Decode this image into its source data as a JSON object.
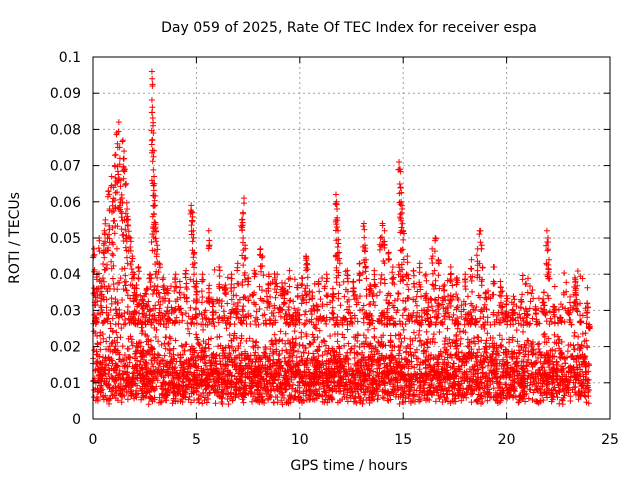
{
  "chart_data": {
    "type": "scatter",
    "title": "Day 059 of 2025, Rate Of TEC Index for receiver espa",
    "xlabel": "GPS time / hours",
    "ylabel": "ROTI / TECUs",
    "xlim": [
      0,
      25
    ],
    "ylim": [
      0,
      0.1
    ],
    "x_ticks": [
      "0",
      "5",
      "10",
      "15",
      "20",
      "25"
    ],
    "y_ticks": [
      "0",
      "0.01",
      "0.02",
      "0.03",
      "0.04",
      "0.05",
      "0.06",
      "0.07",
      "0.08",
      "0.09",
      "0.1"
    ],
    "grid": true,
    "marker": "+",
    "color": "#ff0000",
    "series": [
      {
        "points": [
          [
            0.05,
            0.047
          ],
          [
            0.1,
            0.035
          ],
          [
            0.15,
            0.028
          ],
          [
            0.2,
            0.04
          ],
          [
            0.3,
            0.05
          ],
          [
            0.4,
            0.038
          ],
          [
            0.5,
            0.046
          ],
          [
            0.55,
            0.052
          ],
          [
            0.6,
            0.055
          ],
          [
            0.7,
            0.05
          ],
          [
            0.75,
            0.063
          ],
          [
            0.8,
            0.058
          ],
          [
            0.9,
            0.067
          ],
          [
            0.95,
            0.06
          ],
          [
            1.0,
            0.064
          ],
          [
            1.05,
            0.07
          ],
          [
            1.1,
            0.073
          ],
          [
            1.15,
            0.079
          ],
          [
            1.2,
            0.075
          ],
          [
            1.25,
            0.082
          ],
          [
            1.3,
            0.072
          ],
          [
            1.35,
            0.066
          ],
          [
            1.4,
            0.061
          ],
          [
            1.45,
            0.077
          ],
          [
            1.5,
            0.074
          ],
          [
            1.55,
            0.069
          ],
          [
            1.6,
            0.065
          ],
          [
            1.65,
            0.058
          ],
          [
            1.7,
            0.055
          ],
          [
            1.8,
            0.05
          ],
          [
            1.9,
            0.045
          ],
          [
            2.0,
            0.04
          ],
          [
            2.1,
            0.037
          ],
          [
            2.2,
            0.042
          ],
          [
            2.4,
            0.033
          ],
          [
            2.6,
            0.036
          ],
          [
            2.75,
            0.04
          ],
          [
            2.85,
            0.096
          ],
          [
            2.86,
            0.094
          ],
          [
            2.87,
            0.092
          ],
          [
            2.9,
            0.081
          ],
          [
            2.92,
            0.079
          ],
          [
            2.95,
            0.067
          ],
          [
            2.97,
            0.065
          ],
          [
            3.0,
            0.059
          ],
          [
            3.02,
            0.053
          ],
          [
            3.1,
            0.048
          ],
          [
            3.2,
            0.043
          ],
          [
            3.4,
            0.039
          ],
          [
            3.6,
            0.036
          ],
          [
            4.0,
            0.04
          ],
          [
            4.2,
            0.038
          ],
          [
            4.5,
            0.041
          ],
          [
            4.75,
            0.059
          ],
          [
            4.8,
            0.057
          ],
          [
            4.85,
            0.052
          ],
          [
            4.9,
            0.046
          ],
          [
            5.0,
            0.038
          ],
          [
            5.3,
            0.04
          ],
          [
            5.6,
            0.036
          ],
          [
            5.6,
            0.052
          ],
          [
            5.8,
            0.033
          ],
          [
            6.1,
            0.042
          ],
          [
            6.4,
            0.037
          ],
          [
            6.7,
            0.04
          ],
          [
            7.0,
            0.043
          ],
          [
            7.2,
            0.055
          ],
          [
            7.25,
            0.057
          ],
          [
            7.3,
            0.061
          ],
          [
            7.35,
            0.048
          ],
          [
            7.5,
            0.039
          ],
          [
            7.8,
            0.041
          ],
          [
            8.1,
            0.047
          ],
          [
            8.2,
            0.045
          ],
          [
            8.5,
            0.04
          ],
          [
            8.8,
            0.039
          ],
          [
            9.2,
            0.036
          ],
          [
            9.5,
            0.041
          ],
          [
            9.9,
            0.037
          ],
          [
            10.1,
            0.039
          ],
          [
            10.3,
            0.045
          ],
          [
            10.35,
            0.043
          ],
          [
            10.6,
            0.035
          ],
          [
            10.9,
            0.038
          ],
          [
            11.3,
            0.04
          ],
          [
            11.6,
            0.036
          ],
          [
            11.75,
            0.062
          ],
          [
            11.78,
            0.06
          ],
          [
            11.8,
            0.058
          ],
          [
            11.85,
            0.052
          ],
          [
            11.9,
            0.046
          ],
          [
            12.3,
            0.041
          ],
          [
            12.6,
            0.038
          ],
          [
            12.9,
            0.043
          ],
          [
            13.1,
            0.054
          ],
          [
            13.15,
            0.048
          ],
          [
            13.2,
            0.044
          ],
          [
            13.4,
            0.037
          ],
          [
            13.6,
            0.041
          ],
          [
            13.9,
            0.05
          ],
          [
            14.0,
            0.054
          ],
          [
            14.1,
            0.052
          ],
          [
            14.3,
            0.046
          ],
          [
            14.5,
            0.042
          ],
          [
            14.8,
            0.071
          ],
          [
            14.85,
            0.069
          ],
          [
            14.87,
            0.064
          ],
          [
            14.9,
            0.06
          ],
          [
            14.95,
            0.058
          ],
          [
            15.0,
            0.052
          ],
          [
            15.2,
            0.045
          ],
          [
            15.5,
            0.041
          ],
          [
            15.8,
            0.043
          ],
          [
            16.1,
            0.04
          ],
          [
            16.4,
            0.047
          ],
          [
            16.55,
            0.05
          ],
          [
            16.7,
            0.044
          ],
          [
            17.0,
            0.037
          ],
          [
            17.3,
            0.042
          ],
          [
            17.6,
            0.039
          ],
          [
            18.0,
            0.04
          ],
          [
            18.3,
            0.044
          ],
          [
            18.6,
            0.047
          ],
          [
            18.7,
            0.052
          ],
          [
            18.8,
            0.048
          ],
          [
            19.0,
            0.035
          ],
          [
            19.4,
            0.042
          ],
          [
            19.7,
            0.038
          ],
          [
            20.0,
            0.034
          ],
          [
            20.3,
            0.03
          ],
          [
            20.7,
            0.033
          ],
          [
            21.0,
            0.029
          ],
          [
            21.4,
            0.031
          ],
          [
            21.8,
            0.035
          ],
          [
            21.95,
            0.052
          ],
          [
            22.0,
            0.05
          ],
          [
            22.05,
            0.044
          ],
          [
            22.3,
            0.031
          ],
          [
            22.6,
            0.028
          ],
          [
            23.0,
            0.03
          ],
          [
            23.3,
            0.039
          ],
          [
            23.35,
            0.036
          ],
          [
            23.6,
            0.027
          ],
          [
            23.9,
            0.032
          ],
          [
            24.0,
            0.025
          ]
        ],
        "base_band": [
          0.004,
          0.026
        ]
      }
    ]
  }
}
